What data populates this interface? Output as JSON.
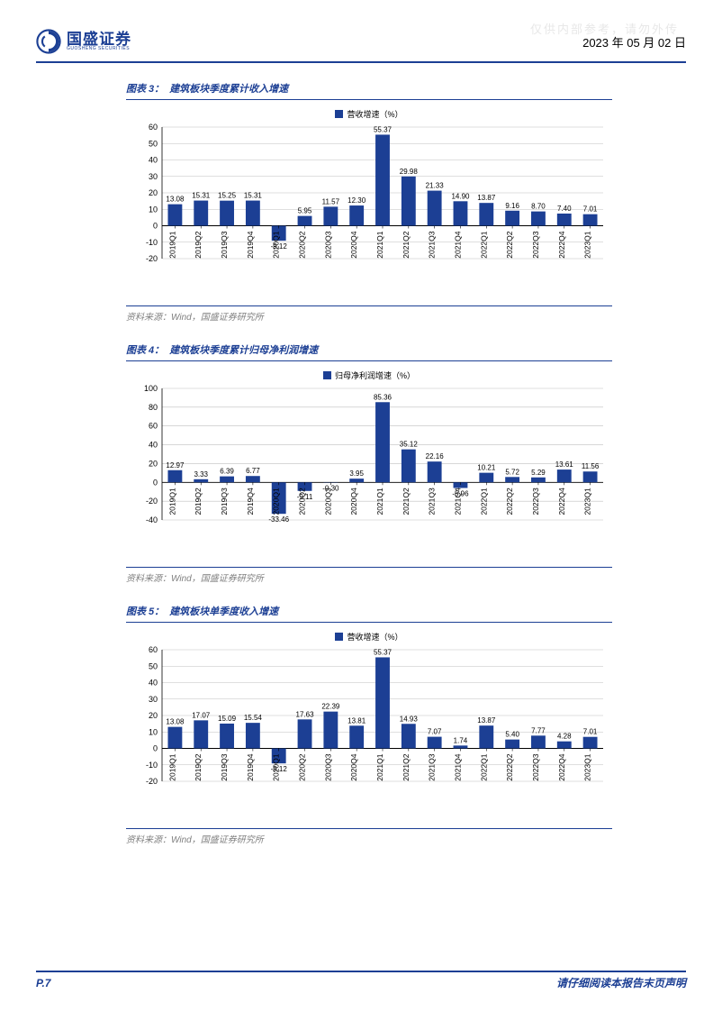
{
  "colors": {
    "brand": "#1c3f94",
    "bar": "#1c3f94",
    "grid": "#bfbfbf",
    "axis": "#000000",
    "text": "#000000",
    "source": "#808080",
    "watermark": "#e8e8e8"
  },
  "header": {
    "logo_cn": "国盛证券",
    "logo_en": "GUOSHENG SECURITIES",
    "date": "2023 年 05 月 02 日",
    "watermark": "仅供内部参考，请勿外传"
  },
  "footer": {
    "page": "P.7",
    "disclaimer": "请仔细阅读本报告末页声明"
  },
  "source_text": "资料来源：Wind，国盛证券研究所",
  "categories": [
    "2019Q1",
    "2019Q2",
    "2019Q3",
    "2019Q4",
    "2020Q1",
    "2020Q2",
    "2020Q3",
    "2020Q4",
    "2021Q1",
    "2021Q2",
    "2021Q3",
    "2021Q4",
    "2022Q1",
    "2022Q2",
    "2022Q3",
    "2022Q4",
    "2023Q1"
  ],
  "chart3": {
    "prefix": "图表 3：",
    "title": "建筑板块季度累计收入增速",
    "legend": "营收增速（%）",
    "ylim": [
      -20,
      60
    ],
    "ystep": 10,
    "values": [
      13.08,
      15.31,
      15.25,
      15.31,
      -9.12,
      5.95,
      11.57,
      12.3,
      55.37,
      29.98,
      21.33,
      14.9,
      13.87,
      9.16,
      8.7,
      7.4,
      7.01
    ]
  },
  "chart4": {
    "prefix": "图表 4：",
    "title": "建筑板块季度累计归母净利润增速",
    "legend": "归母净利润增速（%）",
    "ylim": [
      -40,
      100
    ],
    "ystep": 20,
    "values": [
      12.97,
      3.33,
      6.39,
      6.77,
      -33.46,
      -9.11,
      -0.3,
      3.95,
      85.36,
      35.12,
      22.16,
      -5.96,
      10.21,
      5.72,
      5.29,
      13.61,
      11.56
    ]
  },
  "chart5": {
    "prefix": "图表 5：",
    "title": "建筑板块单季度收入增速",
    "legend": "营收增速（%）",
    "ylim": [
      -20,
      60
    ],
    "ystep": 10,
    "values": [
      13.08,
      17.07,
      15.09,
      15.54,
      -9.12,
      17.63,
      22.39,
      13.81,
      55.37,
      14.93,
      7.07,
      1.74,
      13.87,
      5.4,
      7.77,
      4.28,
      7.01
    ]
  }
}
